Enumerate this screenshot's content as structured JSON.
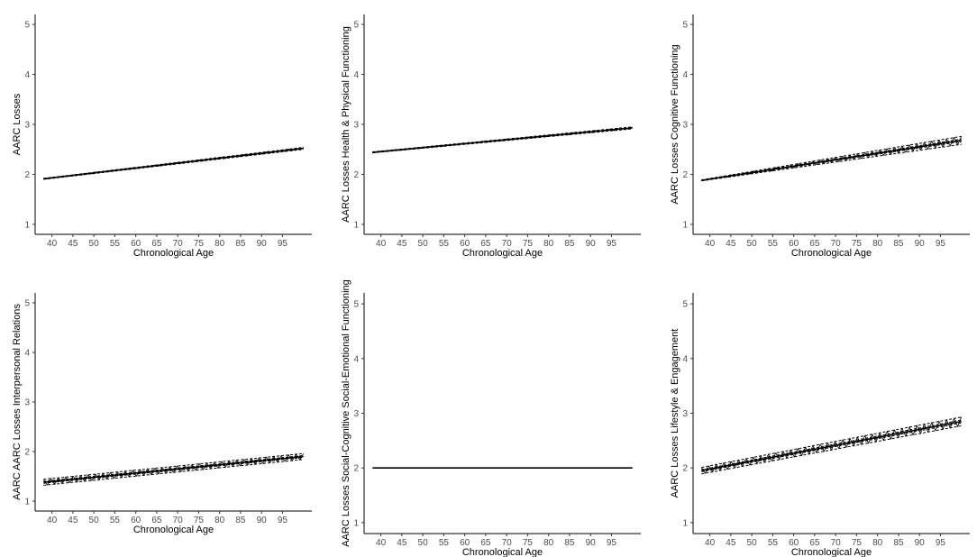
{
  "chart_data": [
    {
      "type": "line",
      "title": "",
      "xlabel": "Chronological Age",
      "ylabel": "AARC Losses",
      "xlim": [
        36,
        102
      ],
      "ylim": [
        0.8,
        5.2
      ],
      "x_ticks": [
        40,
        45,
        50,
        55,
        60,
        65,
        70,
        75,
        80,
        85,
        90,
        95
      ],
      "y_ticks": [
        1,
        2,
        3,
        4,
        5
      ],
      "grid": false,
      "series": [
        {
          "x": [
            38,
            100
          ],
          "y": [
            1.91,
            2.52
          ],
          "band_halfwidth": [
            0.01,
            0.02
          ]
        }
      ]
    },
    {
      "type": "line",
      "title": "",
      "xlabel": "Chronological Age",
      "ylabel": "AARC Losses Health & Physical Functioning",
      "xlim": [
        36,
        102
      ],
      "ylim": [
        0.8,
        5.2
      ],
      "x_ticks": [
        40,
        45,
        50,
        55,
        60,
        65,
        70,
        75,
        80,
        85,
        90,
        95
      ],
      "y_ticks": [
        1,
        2,
        3,
        4,
        5
      ],
      "grid": false,
      "series": [
        {
          "x": [
            38,
            100
          ],
          "y": [
            2.44,
            2.93
          ],
          "band_halfwidth": [
            0.01,
            0.02
          ]
        }
      ]
    },
    {
      "type": "line",
      "title": "",
      "xlabel": "Chronological Age",
      "ylabel": "AARC Losses Cognitive Functioning",
      "xlim": [
        36,
        102
      ],
      "ylim": [
        0.8,
        5.2
      ],
      "x_ticks": [
        40,
        45,
        50,
        55,
        60,
        65,
        70,
        75,
        80,
        85,
        90,
        95
      ],
      "y_ticks": [
        1,
        2,
        3,
        4,
        5
      ],
      "grid": false,
      "series": [
        {
          "x": [
            38,
            100
          ],
          "y": [
            1.88,
            2.68
          ],
          "band_halfwidth": [
            0.01,
            0.08
          ]
        }
      ]
    },
    {
      "type": "line",
      "title": "",
      "xlabel": "Chronological Age",
      "ylabel": "AARC AARC Losses Interpersonal Relations",
      "xlim": [
        36,
        102
      ],
      "ylim": [
        0.8,
        5.2
      ],
      "x_ticks": [
        40,
        45,
        50,
        55,
        60,
        65,
        70,
        75,
        80,
        85,
        90,
        95
      ],
      "y_ticks": [
        1,
        2,
        3,
        4,
        5
      ],
      "grid": false,
      "series": [
        {
          "x": [
            38,
            100
          ],
          "y": [
            1.38,
            1.9
          ],
          "band_halfwidth": [
            0.06,
            0.06
          ]
        }
      ]
    },
    {
      "type": "line",
      "title": "",
      "xlabel": "Chronological Age",
      "ylabel": "AARC Losses Social-Cognitive Social-Emotional Functioning",
      "xlim": [
        36,
        102
      ],
      "ylim": [
        0.8,
        5.2
      ],
      "x_ticks": [
        40,
        45,
        50,
        55,
        60,
        65,
        70,
        75,
        80,
        85,
        90,
        95
      ],
      "y_ticks": [
        1,
        2,
        3,
        4,
        5
      ],
      "grid": false,
      "series": [
        {
          "x": [
            38,
            100
          ],
          "y": [
            2.0,
            2.0
          ],
          "band_halfwidth": [
            0.0,
            0.0
          ]
        }
      ]
    },
    {
      "type": "line",
      "title": "",
      "xlabel": "Chronological Age",
      "ylabel": "AARC Losses Lifestyle & Engagement",
      "xlim": [
        36,
        102
      ],
      "ylim": [
        0.8,
        5.2
      ],
      "x_ticks": [
        40,
        45,
        50,
        55,
        60,
        65,
        70,
        75,
        80,
        85,
        90,
        95
      ],
      "y_ticks": [
        1,
        2,
        3,
        4,
        5
      ],
      "grid": false,
      "series": [
        {
          "x": [
            38,
            100
          ],
          "y": [
            1.95,
            2.85
          ],
          "band_halfwidth": [
            0.06,
            0.08
          ]
        }
      ]
    }
  ]
}
